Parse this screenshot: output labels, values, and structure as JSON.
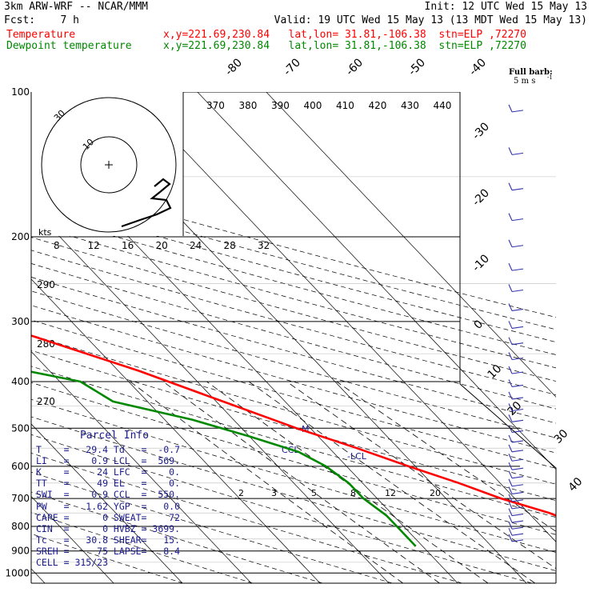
{
  "header": {
    "model": "3km ARW-WRF -- NCAR/MMM",
    "init": "Init: 12 UTC Wed 15 May 13",
    "fcst": "Fcst:    7 h",
    "valid": "Valid: 19 UTC Wed 15 May 13 (13 MDT Wed 15 May 13)",
    "temp_label": "Temperature",
    "temp_info": "x,y=221.69,230.84   lat,lon= 31.81,-106.38  stn=ELP ,72270",
    "dew_label": "Dewpoint temperature",
    "dew_info": "x,y=221.69,230.84   lat,lon= 31.81,-106.38  stn=ELP ,72270"
  },
  "colors": {
    "temperature": "#ff0000",
    "dewpoint": "#008800",
    "parcel_text": "#1a1a8c",
    "wind_barbs": "#3333aa",
    "grid": "#000000"
  },
  "chart_data": {
    "type": "line",
    "y_axis": "pressure",
    "yscale": "log",
    "pressure_ticks": [
      "100",
      "200",
      "300",
      "400",
      "500",
      "600",
      "700",
      "800",
      "900",
      "1000"
    ],
    "isotherm_labels": [
      "-80",
      "-70",
      "-60",
      "-50",
      "-40",
      "-30",
      "-20",
      "-10",
      "0",
      "10",
      "20",
      "30",
      "40"
    ],
    "theta_labels": [
      "370",
      "380",
      "390",
      "400",
      "410",
      "420",
      "430",
      "440"
    ],
    "theta_side_labels": [
      "290",
      "280",
      "270"
    ],
    "hodo_speed_labels": [
      "8",
      "12",
      "16",
      "20",
      "24",
      "28",
      "32"
    ],
    "hodo_units": "kts",
    "hodo_rings": [
      "30",
      "10"
    ],
    "mixing_ratio_labels": [
      "2",
      "3",
      "5",
      "8",
      "12",
      "20"
    ],
    "markers": {
      "ccl": "CCL",
      "lcl": "LCL",
      "m": "M"
    },
    "barb_legend": {
      "title": "Full barb:",
      "value": "5 m s",
      "exp": "-1"
    },
    "series": [
      {
        "name": "Temperature",
        "points": [
          [
            100,
            -62
          ],
          [
            130,
            -57
          ],
          [
            160,
            -55
          ],
          [
            190,
            -57
          ],
          [
            210,
            -55
          ],
          [
            240,
            -47
          ],
          [
            280,
            -37
          ],
          [
            320,
            -28
          ],
          [
            380,
            -17
          ],
          [
            440,
            -9
          ],
          [
            500,
            -2
          ],
          [
            550,
            4
          ],
          [
            600,
            9
          ],
          [
            650,
            14
          ],
          [
            700,
            18
          ],
          [
            750,
            23
          ],
          [
            800,
            26
          ],
          [
            850,
            30
          ],
          [
            880,
            29
          ]
        ]
      },
      {
        "name": "Dewpoint temperature",
        "points": [
          [
            100,
            -86
          ],
          [
            130,
            -83
          ],
          [
            150,
            -83
          ],
          [
            165,
            -81
          ],
          [
            176,
            -76
          ],
          [
            180,
            -76
          ],
          [
            185,
            -73
          ],
          [
            200,
            -69
          ],
          [
            240,
            -62
          ],
          [
            280,
            -56
          ],
          [
            315,
            -59
          ],
          [
            330,
            -55
          ],
          [
            360,
            -40
          ],
          [
            400,
            -27
          ],
          [
            440,
            -25
          ],
          [
            480,
            -16
          ],
          [
            520,
            -10
          ],
          [
            560,
            -5
          ],
          [
            600,
            -3
          ],
          [
            650,
            -2
          ],
          [
            700,
            -2
          ],
          [
            760,
            -1
          ],
          [
            820,
            -1
          ],
          [
            880,
            -1
          ]
        ]
      }
    ]
  },
  "parcel": {
    "title": "Parcel Info",
    "rows": [
      {
        "k1": "T",
        "v1": "29.4",
        "k2": "Td",
        "v2": "-0.7"
      },
      {
        "k1": "LI",
        "v1": "0.9",
        "k2": "LCL",
        "v2": "569."
      },
      {
        "k1": "K",
        "v1": "24",
        "k2": "LFC",
        "v2": "0."
      },
      {
        "k1": "TT",
        "v1": "49",
        "k2": "EL",
        "v2": "0."
      },
      {
        "k1": "SWI",
        "v1": "0.9",
        "k2": "CCL",
        "v2": "550."
      },
      {
        "k1": "PW",
        "v1": "1.62",
        "k2": "YGP",
        "v2": "0.0"
      },
      {
        "k1": "CAPE",
        "v1": "0",
        "k2": "SWEAT",
        "v2": "72"
      },
      {
        "k1": "CIN",
        "v1": "0",
        "k2": "HVBZ",
        "v2": "3699."
      },
      {
        "k1": "Tc",
        "v1": "30.8",
        "k2": "SHEAR",
        "v2": "15."
      },
      {
        "k1": "SREH",
        "v1": "75",
        "k2": "LAPSE",
        "v2": "8.4"
      }
    ],
    "cell": "CELL = 315/23"
  }
}
